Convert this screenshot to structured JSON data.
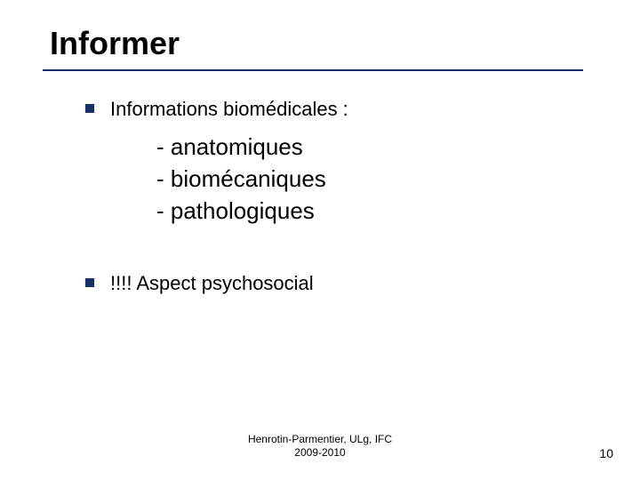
{
  "title": "Informer",
  "underline_color": "#1a2f66",
  "bullet_color": "#1a2f66",
  "bullets": [
    {
      "text": "Informations biomédicales :",
      "sub_items": [
        "- anatomiques",
        "- biomécaniques",
        "- pathologiques"
      ]
    },
    {
      "text": "!!!! Aspect psychosocial",
      "sub_items": []
    }
  ],
  "footer_line1": "Henrotin-Parmentier, ULg, IFC",
  "footer_line2": "2009-2010",
  "page_number": "10",
  "typography": {
    "title_fontsize": 36,
    "bullet_fontsize": 22,
    "subitem_fontsize": 26,
    "footer_fontsize": 12,
    "pagenum_fontsize": 14,
    "font_family": "Verdana"
  },
  "colors": {
    "background": "#ffffff",
    "text": "#000000"
  }
}
